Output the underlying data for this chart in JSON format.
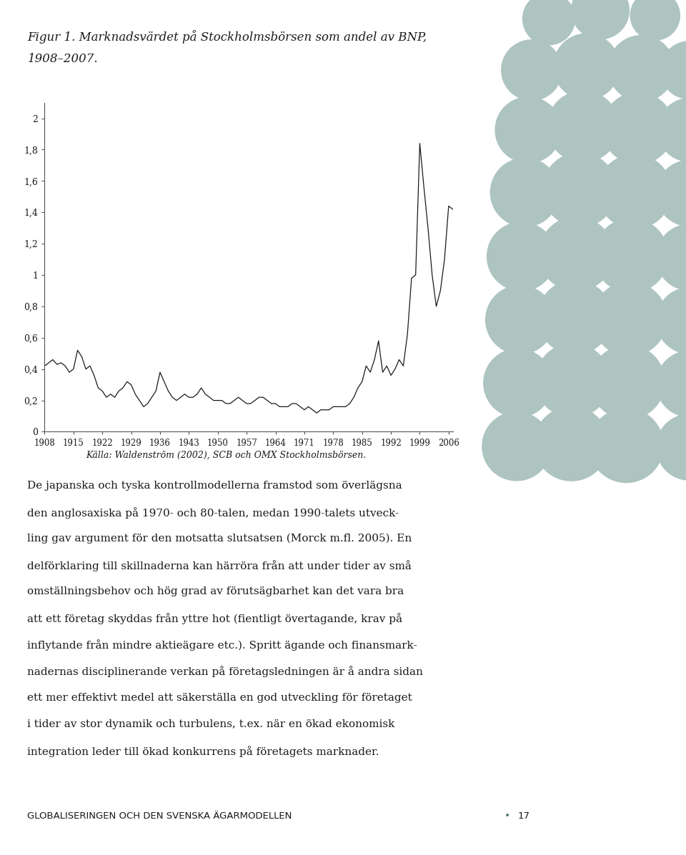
{
  "title_line1": "Figur 1. Marknadsvärdet på Stockholmsbörsen som andel av BNP,",
  "title_line2": "1908–2007.",
  "source_text": "Källa: Waldenström (2002), SCB och OMX Stockholmsbörsen.",
  "body_lines": [
    "De japanska och tyska kontrollmodellerna framstod som överlägsna",
    "den anglosaxiska på 1970- och 80-talen, medan 1990-talets utveck-",
    "ling gav argument för den motsatta slutsatsen (Morck m.fl. 2005). En",
    "delförklaring till skillnaderna kan härröra från att under tider av små",
    "omställningsbehov och hög grad av förutsägbarhet kan det vara bra",
    "att ett företag skyddas från yttre hot (fientligt övertagande, krav på",
    "inflytande från mindre aktieägare etc.). Spritt ägande och finansmark-",
    "nadernas disciplinerande verkan på företagsledningen är å andra sidan",
    "ett mer effektivt medel att säkerställa en god utveckling för företaget",
    "i tider av stor dynamik och turbulens, t.ex. när en ökad ekonomisk",
    "integration leder till ökad konkurrens på företagets marknader."
  ],
  "footer_text": "GLOBALISERINGEN OCH DEN SVENSKA ÄGARMODELLEN",
  "footer_page": "17",
  "yticks": [
    0,
    0.2,
    0.4,
    0.6,
    0.8,
    1.0,
    1.2,
    1.4,
    1.6,
    1.8,
    2.0
  ],
  "ytick_labels": [
    "0",
    "0,2",
    "0,4",
    "0,6",
    "0,8",
    "1",
    "1,2",
    "1,4",
    "1,6",
    "1,8",
    "2"
  ],
  "xtick_years": [
    1908,
    1915,
    1922,
    1929,
    1936,
    1943,
    1950,
    1957,
    1964,
    1971,
    1978,
    1985,
    1992,
    1999,
    2006
  ],
  "line_color": "#1a1a1a",
  "background_color": "#ffffff",
  "dot_color": "#adc4c0",
  "years": [
    1908,
    1909,
    1910,
    1911,
    1912,
    1913,
    1914,
    1915,
    1916,
    1917,
    1918,
    1919,
    1920,
    1921,
    1922,
    1923,
    1924,
    1925,
    1926,
    1927,
    1928,
    1929,
    1930,
    1931,
    1932,
    1933,
    1934,
    1935,
    1936,
    1937,
    1938,
    1939,
    1940,
    1941,
    1942,
    1943,
    1944,
    1945,
    1946,
    1947,
    1948,
    1949,
    1950,
    1951,
    1952,
    1953,
    1954,
    1955,
    1956,
    1957,
    1958,
    1959,
    1960,
    1961,
    1962,
    1963,
    1964,
    1965,
    1966,
    1967,
    1968,
    1969,
    1970,
    1971,
    1972,
    1973,
    1974,
    1975,
    1976,
    1977,
    1978,
    1979,
    1980,
    1981,
    1982,
    1983,
    1984,
    1985,
    1986,
    1987,
    1988,
    1989,
    1990,
    1991,
    1992,
    1993,
    1994,
    1995,
    1996,
    1997,
    1998,
    1999,
    2000,
    2001,
    2002,
    2003,
    2004,
    2005,
    2006,
    2007
  ],
  "values": [
    0.42,
    0.44,
    0.46,
    0.43,
    0.44,
    0.42,
    0.38,
    0.4,
    0.52,
    0.48,
    0.4,
    0.42,
    0.36,
    0.28,
    0.26,
    0.22,
    0.24,
    0.22,
    0.26,
    0.28,
    0.32,
    0.3,
    0.24,
    0.2,
    0.16,
    0.18,
    0.22,
    0.26,
    0.38,
    0.32,
    0.26,
    0.22,
    0.2,
    0.22,
    0.24,
    0.22,
    0.22,
    0.24,
    0.28,
    0.24,
    0.22,
    0.2,
    0.2,
    0.2,
    0.18,
    0.18,
    0.2,
    0.22,
    0.2,
    0.18,
    0.18,
    0.2,
    0.22,
    0.22,
    0.2,
    0.18,
    0.18,
    0.16,
    0.16,
    0.16,
    0.18,
    0.18,
    0.16,
    0.14,
    0.16,
    0.14,
    0.12,
    0.14,
    0.14,
    0.14,
    0.16,
    0.16,
    0.16,
    0.16,
    0.18,
    0.22,
    0.28,
    0.32,
    0.42,
    0.38,
    0.46,
    0.58,
    0.38,
    0.42,
    0.36,
    0.4,
    0.46,
    0.42,
    0.62,
    0.98,
    1.0,
    1.84,
    1.56,
    1.3,
    1.0,
    0.8,
    0.9,
    1.1,
    1.44,
    1.42
  ],
  "dot_data": [
    [
      0.8,
      0.978,
      0.038
    ],
    [
      0.875,
      0.988,
      0.042
    ],
    [
      0.955,
      0.982,
      0.036
    ],
    [
      0.775,
      0.918,
      0.044
    ],
    [
      0.855,
      0.922,
      0.048
    ],
    [
      0.935,
      0.92,
      0.048
    ],
    [
      1.005,
      0.918,
      0.042
    ],
    [
      0.77,
      0.848,
      0.048
    ],
    [
      0.85,
      0.852,
      0.052
    ],
    [
      0.93,
      0.85,
      0.052
    ],
    [
      1.005,
      0.848,
      0.046
    ],
    [
      0.765,
      0.775,
      0.05
    ],
    [
      0.845,
      0.778,
      0.054
    ],
    [
      0.925,
      0.776,
      0.054
    ],
    [
      1.005,
      0.774,
      0.048
    ],
    [
      0.76,
      0.7,
      0.05
    ],
    [
      0.84,
      0.703,
      0.054
    ],
    [
      0.92,
      0.701,
      0.054
    ],
    [
      1.005,
      0.699,
      0.048
    ],
    [
      0.758,
      0.626,
      0.05
    ],
    [
      0.838,
      0.629,
      0.054
    ],
    [
      0.918,
      0.627,
      0.054
    ],
    [
      1.005,
      0.625,
      0.048
    ],
    [
      0.755,
      0.552,
      0.05
    ],
    [
      0.835,
      0.555,
      0.054
    ],
    [
      0.915,
      0.553,
      0.054
    ],
    [
      1.005,
      0.551,
      0.048
    ],
    [
      0.753,
      0.478,
      0.05
    ],
    [
      0.833,
      0.481,
      0.054
    ],
    [
      0.913,
      0.479,
      0.054
    ],
    [
      1.005,
      0.477,
      0.048
    ]
  ]
}
